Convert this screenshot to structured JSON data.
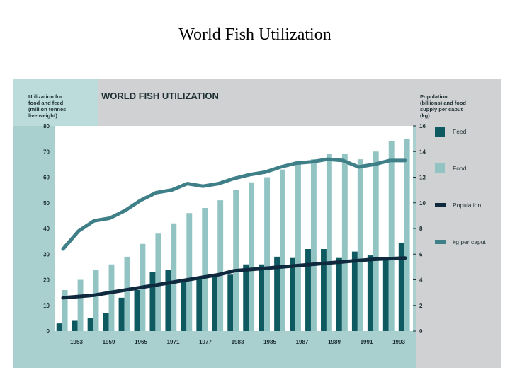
{
  "page": {
    "title": "World Fish Utilization"
  },
  "chart_data": {
    "type": "bar",
    "title": "WORLD FISH UTILIZATION",
    "ylabel_left": "Utilization for food and feed (million tonnes live weight)",
    "ylabel_right": "Population (billions) and food supply per caput (kg)",
    "ylim_left": [
      0,
      80
    ],
    "ylim_right": [
      0,
      16
    ],
    "yticks_left": [
      "0",
      "10",
      "20",
      "30",
      "40",
      "50",
      "60",
      "70",
      "80"
    ],
    "yticks_right": [
      "0",
      "2",
      "4",
      "6",
      "8",
      "10",
      "12",
      "14",
      "16"
    ],
    "xtick_labels": [
      "1953",
      "1959",
      "1965",
      "1971",
      "1977",
      "1983",
      "1985",
      "1987",
      "1989",
      "1991",
      "1993"
    ],
    "series": [
      {
        "name": "Feed",
        "color": "#0f5a60",
        "axis": "left",
        "values": [
          3,
          4,
          5,
          7,
          13,
          16,
          23,
          24,
          20,
          21,
          21,
          22,
          26,
          26,
          29,
          28.5,
          32,
          32,
          28.5,
          31,
          29.5,
          28,
          34.5
        ]
      },
      {
        "name": "Food",
        "color": "#93c4c4",
        "axis": "left",
        "values": [
          16,
          20,
          24,
          26,
          29,
          34,
          38,
          42,
          46,
          48,
          51,
          55,
          58,
          60,
          63,
          65,
          67,
          69,
          69,
          67,
          70,
          74,
          75
        ]
      }
    ],
    "lines": [
      {
        "name": "Population",
        "color": "#0f2a3e",
        "axis": "right",
        "values": [
          2.6,
          2.7,
          2.8,
          3.0,
          3.2,
          3.4,
          3.6,
          3.8,
          4.0,
          4.2,
          4.4,
          4.7,
          4.8,
          4.9,
          5.0,
          5.1,
          5.2,
          5.3,
          5.4,
          5.5,
          5.6,
          5.65,
          5.7
        ]
      },
      {
        "name": "kg per caput",
        "color": "#3e7f88",
        "axis": "right",
        "values": [
          6.4,
          7.8,
          8.6,
          8.8,
          9.4,
          10.2,
          10.8,
          11.0,
          11.5,
          11.3,
          11.5,
          11.9,
          12.2,
          12.4,
          12.8,
          13.1,
          13.2,
          13.4,
          13.3,
          12.8,
          13.0,
          13.3,
          13.3
        ]
      }
    ],
    "legend": {
      "placement": "right",
      "items": [
        "Feed",
        "Food",
        "Population",
        "kg per caput"
      ]
    }
  }
}
